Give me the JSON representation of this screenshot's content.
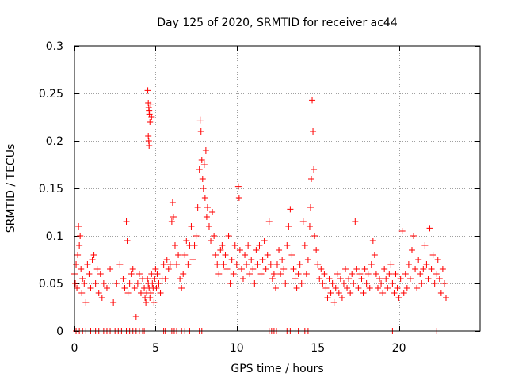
{
  "chart_data": {
    "type": "scatter",
    "title": "Day 125 of 2020, SRMTID for receiver ac44",
    "xlabel": "GPS time / hours",
    "ylabel": "SRMTID / TECUs",
    "xlim": [
      0,
      25
    ],
    "ylim": [
      0,
      0.3
    ],
    "grid": true,
    "marker": "+",
    "marker_color": "#ff0000",
    "x_ticks": [
      0,
      5,
      10,
      15,
      20
    ],
    "x_tick_labels": [
      "0",
      "5",
      "10",
      "15",
      "20"
    ],
    "y_ticks": [
      0,
      0.05,
      0.1,
      0.15,
      0.2,
      0.25,
      0.3
    ],
    "y_tick_labels": [
      "0",
      "0.05",
      "0.1",
      "0.15",
      "0.2",
      "0.25",
      "0.3"
    ],
    "series": [
      {
        "name": "SRMTID",
        "points": [
          [
            0.0,
            0.06
          ],
          [
            0.05,
            0.05
          ],
          [
            0.1,
            0.07
          ],
          [
            0.15,
            0.045
          ],
          [
            0.2,
            0.08
          ],
          [
            0.25,
            0.11
          ],
          [
            0.3,
            0.09
          ],
          [
            0.35,
            0.1
          ],
          [
            0.4,
            0.065
          ],
          [
            0.45,
            0.04
          ],
          [
            0.5,
            0.055
          ],
          [
            0.6,
            0.05
          ],
          [
            0.7,
            0.03
          ],
          [
            0.8,
            0.07
          ],
          [
            0.9,
            0.06
          ],
          [
            1.0,
            0.045
          ],
          [
            1.1,
            0.075
          ],
          [
            1.2,
            0.08
          ],
          [
            1.3,
            0.05
          ],
          [
            1.4,
            0.065
          ],
          [
            1.5,
            0.04
          ],
          [
            1.6,
            0.06
          ],
          [
            1.7,
            0.035
          ],
          [
            1.8,
            0.05
          ],
          [
            2.0,
            0.045
          ],
          [
            2.2,
            0.065
          ],
          [
            2.4,
            0.03
          ],
          [
            2.6,
            0.05
          ],
          [
            2.8,
            0.07
          ],
          [
            3.0,
            0.055
          ],
          [
            3.1,
            0.045
          ],
          [
            3.2,
            0.115
          ],
          [
            3.25,
            0.095
          ],
          [
            3.3,
            0.04
          ],
          [
            3.4,
            0.05
          ],
          [
            3.5,
            0.06
          ],
          [
            3.6,
            0.065
          ],
          [
            3.7,
            0.045
          ],
          [
            3.8,
            0.015
          ],
          [
            3.9,
            0.05
          ],
          [
            4.0,
            0.06
          ],
          [
            4.1,
            0.04
          ],
          [
            4.2,
            0.055
          ],
          [
            4.3,
            0.045
          ],
          [
            4.35,
            0.035
          ],
          [
            4.4,
            0.03
          ],
          [
            4.45,
            0.04
          ],
          [
            4.5,
            0.055
          ],
          [
            4.55,
            0.05
          ],
          [
            4.6,
            0.045
          ],
          [
            4.65,
            0.035
          ],
          [
            4.7,
            0.04
          ],
          [
            4.75,
            0.06
          ],
          [
            4.8,
            0.05
          ],
          [
            4.85,
            0.045
          ],
          [
            4.9,
            0.03
          ],
          [
            4.95,
            0.055
          ],
          [
            5.0,
            0.065
          ],
          [
            5.05,
            0.045
          ],
          [
            5.1,
            0.06
          ],
          [
            5.2,
            0.05
          ],
          [
            5.3,
            0.04
          ],
          [
            5.4,
            0.055
          ],
          [
            4.52,
            0.253
          ],
          [
            4.55,
            0.24
          ],
          [
            4.58,
            0.235
          ],
          [
            4.6,
            0.232
          ],
          [
            4.62,
            0.228
          ],
          [
            4.65,
            0.22
          ],
          [
            4.7,
            0.238
          ],
          [
            4.75,
            0.225
          ],
          [
            4.55,
            0.205
          ],
          [
            4.58,
            0.2
          ],
          [
            4.6,
            0.195
          ],
          [
            5.5,
            0.07
          ],
          [
            5.6,
            0.055
          ],
          [
            5.7,
            0.075
          ],
          [
            5.8,
            0.065
          ],
          [
            5.9,
            0.07
          ],
          [
            6.0,
            0.115
          ],
          [
            6.05,
            0.135
          ],
          [
            6.1,
            0.12
          ],
          [
            6.2,
            0.09
          ],
          [
            6.3,
            0.07
          ],
          [
            6.4,
            0.08
          ],
          [
            6.5,
            0.055
          ],
          [
            6.6,
            0.045
          ],
          [
            6.7,
            0.06
          ],
          [
            6.8,
            0.08
          ],
          [
            6.9,
            0.095
          ],
          [
            7.0,
            0.07
          ],
          [
            7.1,
            0.09
          ],
          [
            7.2,
            0.11
          ],
          [
            7.3,
            0.075
          ],
          [
            7.4,
            0.09
          ],
          [
            7.5,
            0.1
          ],
          [
            7.6,
            0.13
          ],
          [
            7.7,
            0.17
          ],
          [
            7.75,
            0.222
          ],
          [
            7.8,
            0.21
          ],
          [
            7.85,
            0.18
          ],
          [
            7.9,
            0.16
          ],
          [
            7.95,
            0.15
          ],
          [
            8.0,
            0.175
          ],
          [
            8.05,
            0.14
          ],
          [
            8.1,
            0.19
          ],
          [
            8.15,
            0.12
          ],
          [
            8.2,
            0.13
          ],
          [
            8.3,
            0.11
          ],
          [
            8.4,
            0.095
          ],
          [
            8.5,
            0.125
          ],
          [
            8.6,
            0.1
          ],
          [
            8.7,
            0.08
          ],
          [
            8.8,
            0.07
          ],
          [
            8.9,
            0.06
          ],
          [
            9.0,
            0.085
          ],
          [
            9.1,
            0.09
          ],
          [
            9.2,
            0.07
          ],
          [
            9.3,
            0.08
          ],
          [
            9.4,
            0.065
          ],
          [
            9.5,
            0.1
          ],
          [
            9.6,
            0.05
          ],
          [
            9.7,
            0.075
          ],
          [
            9.8,
            0.06
          ],
          [
            9.9,
            0.09
          ],
          [
            10.0,
            0.07
          ],
          [
            10.1,
            0.152
          ],
          [
            10.15,
            0.14
          ],
          [
            10.2,
            0.085
          ],
          [
            10.3,
            0.065
          ],
          [
            10.4,
            0.055
          ],
          [
            10.5,
            0.08
          ],
          [
            10.6,
            0.07
          ],
          [
            10.7,
            0.09
          ],
          [
            10.8,
            0.06
          ],
          [
            10.9,
            0.075
          ],
          [
            11.0,
            0.065
          ],
          [
            11.1,
            0.05
          ],
          [
            11.2,
            0.085
          ],
          [
            11.3,
            0.07
          ],
          [
            11.4,
            0.09
          ],
          [
            11.5,
            0.06
          ],
          [
            11.6,
            0.075
          ],
          [
            11.7,
            0.095
          ],
          [
            11.8,
            0.065
          ],
          [
            11.9,
            0.08
          ],
          [
            12.0,
            0.115
          ],
          [
            12.1,
            0.07
          ],
          [
            12.2,
            0.055
          ],
          [
            12.3,
            0.06
          ],
          [
            12.4,
            0.045
          ],
          [
            12.5,
            0.07
          ],
          [
            12.6,
            0.085
          ],
          [
            12.7,
            0.06
          ],
          [
            12.8,
            0.075
          ],
          [
            12.9,
            0.065
          ],
          [
            13.0,
            0.05
          ],
          [
            13.1,
            0.09
          ],
          [
            13.2,
            0.11
          ],
          [
            13.3,
            0.128
          ],
          [
            13.4,
            0.08
          ],
          [
            13.5,
            0.065
          ],
          [
            13.6,
            0.055
          ],
          [
            13.7,
            0.045
          ],
          [
            13.8,
            0.06
          ],
          [
            13.9,
            0.07
          ],
          [
            14.0,
            0.05
          ],
          [
            14.1,
            0.115
          ],
          [
            14.2,
            0.09
          ],
          [
            14.3,
            0.06
          ],
          [
            14.4,
            0.075
          ],
          [
            14.5,
            0.11
          ],
          [
            14.55,
            0.13
          ],
          [
            14.6,
            0.16
          ],
          [
            14.65,
            0.243
          ],
          [
            14.7,
            0.21
          ],
          [
            14.75,
            0.17
          ],
          [
            14.8,
            0.1
          ],
          [
            14.9,
            0.085
          ],
          [
            15.0,
            0.07
          ],
          [
            15.1,
            0.055
          ],
          [
            15.2,
            0.065
          ],
          [
            15.3,
            0.05
          ],
          [
            15.4,
            0.06
          ],
          [
            15.5,
            0.045
          ],
          [
            15.6,
            0.035
          ],
          [
            15.7,
            0.055
          ],
          [
            15.8,
            0.04
          ],
          [
            15.9,
            0.05
          ],
          [
            16.0,
            0.03
          ],
          [
            16.1,
            0.045
          ],
          [
            16.2,
            0.06
          ],
          [
            16.3,
            0.04
          ],
          [
            16.4,
            0.055
          ],
          [
            16.5,
            0.035
          ],
          [
            16.6,
            0.05
          ],
          [
            16.7,
            0.065
          ],
          [
            16.8,
            0.045
          ],
          [
            16.9,
            0.055
          ],
          [
            17.0,
            0.04
          ],
          [
            17.1,
            0.06
          ],
          [
            17.2,
            0.05
          ],
          [
            17.3,
            0.115
          ],
          [
            17.4,
            0.065
          ],
          [
            17.5,
            0.045
          ],
          [
            17.6,
            0.06
          ],
          [
            17.7,
            0.055
          ],
          [
            17.8,
            0.04
          ],
          [
            17.9,
            0.065
          ],
          [
            18.0,
            0.05
          ],
          [
            18.1,
            0.06
          ],
          [
            18.2,
            0.045
          ],
          [
            18.3,
            0.07
          ],
          [
            18.4,
            0.095
          ],
          [
            18.5,
            0.08
          ],
          [
            18.6,
            0.06
          ],
          [
            18.7,
            0.045
          ],
          [
            18.8,
            0.055
          ],
          [
            18.9,
            0.05
          ],
          [
            19.0,
            0.04
          ],
          [
            19.1,
            0.065
          ],
          [
            19.2,
            0.055
          ],
          [
            19.3,
            0.045
          ],
          [
            19.4,
            0.06
          ],
          [
            19.5,
            0.07
          ],
          [
            19.6,
            0.05
          ],
          [
            19.7,
            0.04
          ],
          [
            19.8,
            0.06
          ],
          [
            19.9,
            0.045
          ],
          [
            20.0,
            0.035
          ],
          [
            20.1,
            0.055
          ],
          [
            20.2,
            0.105
          ],
          [
            20.3,
            0.04
          ],
          [
            20.4,
            0.06
          ],
          [
            20.5,
            0.045
          ],
          [
            20.6,
            0.07
          ],
          [
            20.7,
            0.055
          ],
          [
            20.8,
            0.085
          ],
          [
            20.9,
            0.1
          ],
          [
            21.0,
            0.065
          ],
          [
            21.1,
            0.045
          ],
          [
            21.2,
            0.075
          ],
          [
            21.3,
            0.06
          ],
          [
            21.4,
            0.05
          ],
          [
            21.5,
            0.065
          ],
          [
            21.6,
            0.09
          ],
          [
            21.7,
            0.07
          ],
          [
            21.8,
            0.055
          ],
          [
            21.9,
            0.108
          ],
          [
            22.0,
            0.065
          ],
          [
            22.1,
            0.08
          ],
          [
            22.2,
            0.05
          ],
          [
            22.3,
            0.06
          ],
          [
            22.4,
            0.075
          ],
          [
            22.5,
            0.055
          ],
          [
            22.6,
            0.04
          ],
          [
            22.7,
            0.065
          ],
          [
            22.8,
            0.05
          ],
          [
            22.9,
            0.035
          ],
          [
            0.1,
            0.0
          ],
          [
            0.3,
            0.0
          ],
          [
            0.5,
            0.0
          ],
          [
            0.7,
            0.0
          ],
          [
            1.0,
            0.0
          ],
          [
            1.15,
            0.0
          ],
          [
            1.3,
            0.0
          ],
          [
            1.5,
            0.0
          ],
          [
            1.8,
            0.0
          ],
          [
            2.0,
            0.0
          ],
          [
            2.2,
            0.0
          ],
          [
            2.5,
            0.0
          ],
          [
            2.7,
            0.0
          ],
          [
            2.9,
            0.0
          ],
          [
            3.2,
            0.0
          ],
          [
            3.4,
            0.0
          ],
          [
            3.6,
            0.0
          ],
          [
            3.8,
            0.0
          ],
          [
            4.0,
            0.0
          ],
          [
            4.2,
            0.0
          ],
          [
            4.3,
            0.0
          ],
          [
            5.5,
            0.0
          ],
          [
            5.6,
            0.0
          ],
          [
            6.0,
            0.0
          ],
          [
            6.15,
            0.0
          ],
          [
            6.3,
            0.0
          ],
          [
            6.6,
            0.0
          ],
          [
            6.8,
            0.0
          ],
          [
            7.1,
            0.0
          ],
          [
            7.3,
            0.0
          ],
          [
            7.7,
            0.0
          ],
          [
            7.85,
            0.0
          ],
          [
            12.0,
            0.0
          ],
          [
            12.15,
            0.0
          ],
          [
            12.3,
            0.0
          ],
          [
            12.45,
            0.0
          ],
          [
            13.1,
            0.0
          ],
          [
            13.3,
            0.0
          ],
          [
            13.6,
            0.0
          ],
          [
            13.8,
            0.0
          ],
          [
            14.2,
            0.0
          ],
          [
            14.4,
            0.0
          ],
          [
            19.6,
            0.0
          ],
          [
            22.3,
            0.0
          ]
        ]
      }
    ]
  }
}
